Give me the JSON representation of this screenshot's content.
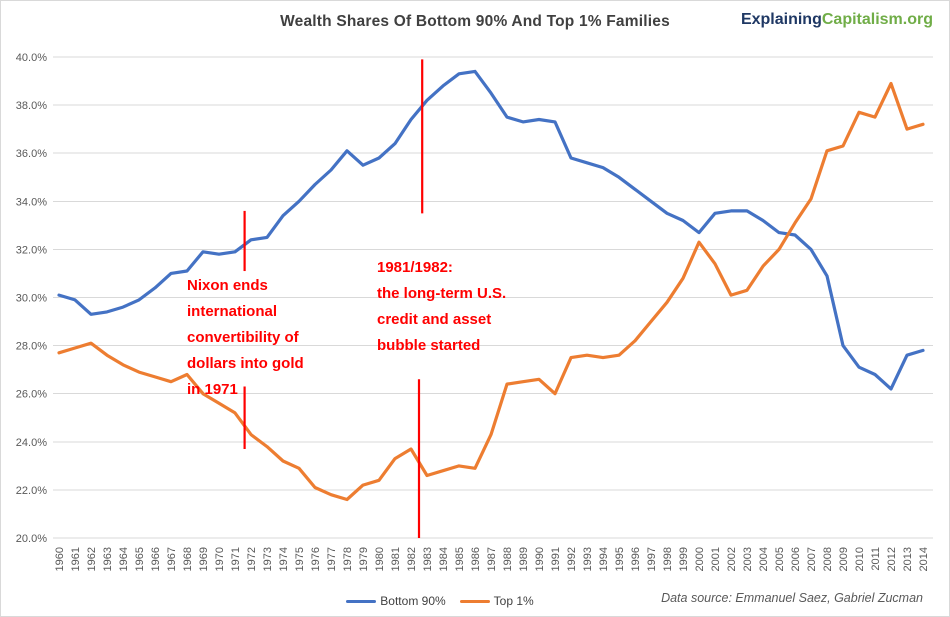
{
  "header": {
    "title": "Wealth Shares Of Bottom 90% And Top 1% Families",
    "brand_part1": "Explaining",
    "brand_part2": "Capitalism.org"
  },
  "chart_data": {
    "type": "line",
    "x": [
      1960,
      1961,
      1962,
      1963,
      1964,
      1965,
      1966,
      1967,
      1968,
      1969,
      1970,
      1971,
      1972,
      1973,
      1974,
      1975,
      1976,
      1977,
      1978,
      1979,
      1980,
      1981,
      1982,
      1983,
      1984,
      1985,
      1986,
      1987,
      1988,
      1989,
      1990,
      1991,
      1992,
      1993,
      1994,
      1995,
      1996,
      1997,
      1998,
      1999,
      2000,
      2001,
      2002,
      2003,
      2004,
      2005,
      2006,
      2007,
      2008,
      2009,
      2010,
      2011,
      2012,
      2013,
      2014
    ],
    "series": [
      {
        "name": "Bottom 90%",
        "color": "#4472c4",
        "values": [
          30.1,
          29.9,
          29.3,
          29.4,
          29.6,
          29.9,
          30.4,
          31.0,
          31.1,
          31.9,
          31.8,
          31.9,
          32.4,
          32.5,
          33.4,
          34.0,
          34.7,
          35.3,
          36.1,
          35.5,
          35.8,
          36.4,
          37.4,
          38.2,
          38.8,
          39.3,
          39.4,
          38.5,
          37.5,
          37.3,
          37.4,
          37.3,
          35.8,
          35.6,
          35.4,
          35.0,
          34.5,
          34.0,
          33.5,
          33.2,
          32.7,
          33.5,
          33.6,
          33.6,
          33.2,
          32.7,
          32.6,
          32.0,
          30.9,
          28.0,
          27.1,
          26.8,
          26.2,
          27.6,
          27.8
        ]
      },
      {
        "name": "Top 1%",
        "color": "#ed7d31",
        "values": [
          27.7,
          27.9,
          28.1,
          27.6,
          27.2,
          26.9,
          26.7,
          26.5,
          26.8,
          26.0,
          25.6,
          25.2,
          24.3,
          23.8,
          23.2,
          22.9,
          22.1,
          21.8,
          21.6,
          22.2,
          22.4,
          23.3,
          23.7,
          22.6,
          22.8,
          23.0,
          22.9,
          24.3,
          26.4,
          26.5,
          26.6,
          26.0,
          27.5,
          27.6,
          27.5,
          27.6,
          28.2,
          29.0,
          29.8,
          30.8,
          32.3,
          31.4,
          30.1,
          30.3,
          31.3,
          32.0,
          33.1,
          34.1,
          36.1,
          36.3,
          37.7,
          37.5,
          38.9,
          37.0,
          37.2
        ]
      }
    ],
    "title": "Wealth Shares Of Bottom 90% And Top 1% Families",
    "xlabel": "",
    "ylabel": "",
    "ylim": [
      20,
      40
    ],
    "ytick_labels": [
      "40.0%",
      "38.0%",
      "36.0%",
      "34.0%",
      "32.0%",
      "30.0%",
      "28.0%",
      "26.0%",
      "24.0%",
      "22.0%",
      "20.0%"
    ],
    "ytick_values": [
      40,
      38,
      36,
      34,
      32,
      30,
      28,
      26,
      24,
      22,
      20
    ],
    "grid": true,
    "legend_position": "bottom",
    "annotations": [
      {
        "id": "nixon",
        "color": "#ff0000",
        "lines": [
          "Nixon ends",
          "international",
          "convertibility of",
          "dollars into gold",
          "in 1971"
        ]
      },
      {
        "id": "bubble",
        "color": "#ff0000",
        "lines": [
          "1981/1982:",
          "the long-term U.S.",
          "credit and asset",
          "bubble started"
        ]
      }
    ],
    "event_lines": [
      {
        "id": "gold-1971-upper",
        "color": "#ff0000",
        "year": 1971.6,
        "v_from": 33.6,
        "v_to": 31.1
      },
      {
        "id": "gold-1971-lower",
        "color": "#ff0000",
        "year": 1971.6,
        "v_from": 26.3,
        "v_to": 23.7
      },
      {
        "id": "bubble-1982-upper",
        "color": "#ff0000",
        "year": 1982.7,
        "v_from": 39.9,
        "v_to": 33.5
      },
      {
        "id": "bubble-1982-lower",
        "color": "#ff0000",
        "year": 1982.5,
        "v_from": 26.6,
        "v_to": 20.0
      }
    ]
  },
  "footer": {
    "source": "Data source: Emmanuel Saez, Gabriel Zucman"
  }
}
